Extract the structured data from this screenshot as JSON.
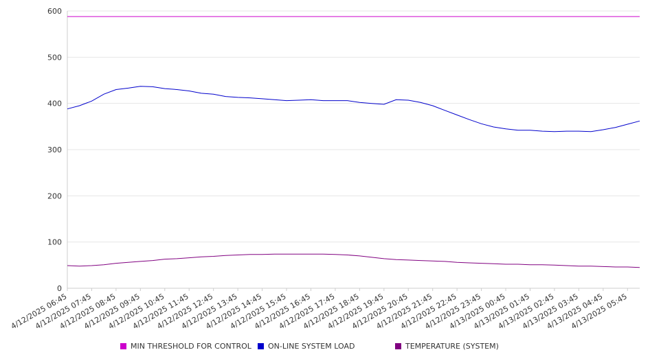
{
  "chart_data": {
    "type": "line",
    "xlabel": "",
    "ylabel": "",
    "ylim": [
      0,
      600
    ],
    "y_ticks": [
      "0",
      "100",
      "200",
      "300",
      "400",
      "500",
      "600"
    ],
    "x_tick_labels": [
      "4/12/2025 06:45",
      "4/12/2025 07:45",
      "4/12/2025 08:45",
      "4/12/2025 09:45",
      "4/12/2025 10:45",
      "4/12/2025 11:45",
      "4/12/2025 12:45",
      "4/12/2025 13:45",
      "4/12/2025 14:45",
      "4/12/2025 15:45",
      "4/12/2025 16:45",
      "4/12/2025 17:45",
      "4/12/2025 18:45",
      "4/12/2025 19:45",
      "4/12/2025 20:45",
      "4/12/2025 21:45",
      "4/12/2025 22:45",
      "4/12/2025 23:45",
      "4/13/2025 00:45",
      "4/13/2025 01:45",
      "4/13/2025 02:45",
      "4/13/2025 03:45",
      "4/13/2025 04:45",
      "4/13/2025 05:45"
    ],
    "x": [
      "4/12/2025 06:45",
      "4/12/2025 07:15",
      "4/12/2025 07:45",
      "4/12/2025 08:15",
      "4/12/2025 08:45",
      "4/12/2025 09:15",
      "4/12/2025 09:45",
      "4/12/2025 10:15",
      "4/12/2025 10:45",
      "4/12/2025 11:15",
      "4/12/2025 11:45",
      "4/12/2025 12:15",
      "4/12/2025 12:45",
      "4/12/2025 13:15",
      "4/12/2025 13:45",
      "4/12/2025 14:15",
      "4/12/2025 14:45",
      "4/12/2025 15:15",
      "4/12/2025 15:45",
      "4/12/2025 16:15",
      "4/12/2025 16:45",
      "4/12/2025 17:15",
      "4/12/2025 17:45",
      "4/12/2025 18:15",
      "4/12/2025 18:45",
      "4/12/2025 19:15",
      "4/12/2025 19:45",
      "4/12/2025 20:15",
      "4/12/2025 20:45",
      "4/12/2025 21:15",
      "4/12/2025 21:45",
      "4/12/2025 22:15",
      "4/12/2025 22:45",
      "4/12/2025 23:15",
      "4/12/2025 23:45",
      "4/13/2025 00:15",
      "4/13/2025 00:45",
      "4/13/2025 01:15",
      "4/13/2025 01:45",
      "4/13/2025 02:15",
      "4/13/2025 02:45",
      "4/13/2025 03:15",
      "4/13/2025 03:45",
      "4/13/2025 04:15",
      "4/13/2025 04:45",
      "4/13/2025 05:15",
      "4/13/2025 05:45",
      "4/13/2025 06:15"
    ],
    "series": [
      {
        "name": "MIN THRESHOLD FOR CONTROL",
        "color": "#cc00cc",
        "values": [
          588,
          588,
          588,
          588,
          588,
          588,
          588,
          588,
          588,
          588,
          588,
          588,
          588,
          588,
          588,
          588,
          588,
          588,
          588,
          588,
          588,
          588,
          588,
          588,
          588,
          588,
          588,
          588,
          588,
          588,
          588,
          588,
          588,
          588,
          588,
          588,
          588,
          588,
          588,
          588,
          588,
          588,
          588,
          588,
          588,
          588,
          588,
          588
        ]
      },
      {
        "name": "ON-LINE SYSTEM LOAD",
        "color": "#0000cc",
        "values": [
          388,
          395,
          405,
          420,
          430,
          433,
          437,
          436,
          432,
          430,
          427,
          422,
          420,
          415,
          413,
          412,
          410,
          408,
          406,
          407,
          408,
          406,
          406,
          406,
          402,
          400,
          398,
          408,
          407,
          402,
          395,
          385,
          375,
          365,
          356,
          349,
          345,
          342,
          342,
          340,
          339,
          340,
          340,
          339,
          343,
          348,
          355,
          362
        ]
      },
      {
        "name": "TEMPERATURE (SYSTEM)",
        "color": "#800080",
        "values": [
          49,
          48,
          49,
          51,
          54,
          56,
          58,
          60,
          63,
          64,
          66,
          68,
          69,
          71,
          72,
          73,
          73,
          74,
          74,
          74,
          74,
          74,
          73,
          72,
          70,
          67,
          64,
          62,
          61,
          60,
          59,
          58,
          56,
          55,
          54,
          53,
          52,
          52,
          51,
          51,
          50,
          49,
          48,
          48,
          47,
          46,
          46,
          45
        ]
      }
    ],
    "legend_position": "bottom",
    "grid": true
  }
}
